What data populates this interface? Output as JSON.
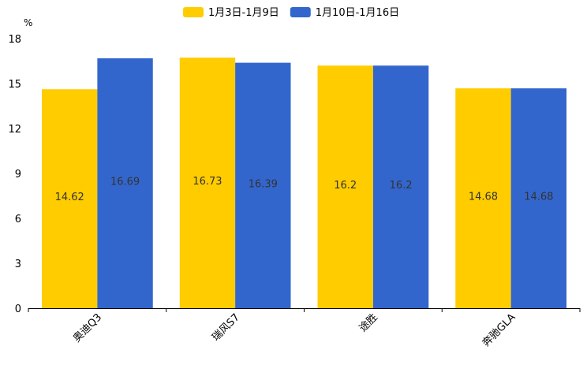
{
  "chart_data": {
    "type": "bar",
    "title": "",
    "xlabel": "",
    "ylabel": "%",
    "categories": [
      "奥迪Q3",
      "瑞风S7",
      "途胜",
      "奔驰GLA"
    ],
    "series": [
      {
        "name": "1月3日-1月9日",
        "color": "#FFCC00",
        "values": [
          14.62,
          16.73,
          16.2,
          14.68
        ]
      },
      {
        "name": "1月10日-1月16日",
        "color": "#3366CC",
        "values": [
          16.69,
          16.39,
          16.2,
          14.68
        ]
      }
    ],
    "ylim": [
      0,
      18
    ],
    "yticks": [
      0,
      3,
      6,
      9,
      12,
      15,
      18
    ],
    "grid": false,
    "legend": "top-center"
  }
}
